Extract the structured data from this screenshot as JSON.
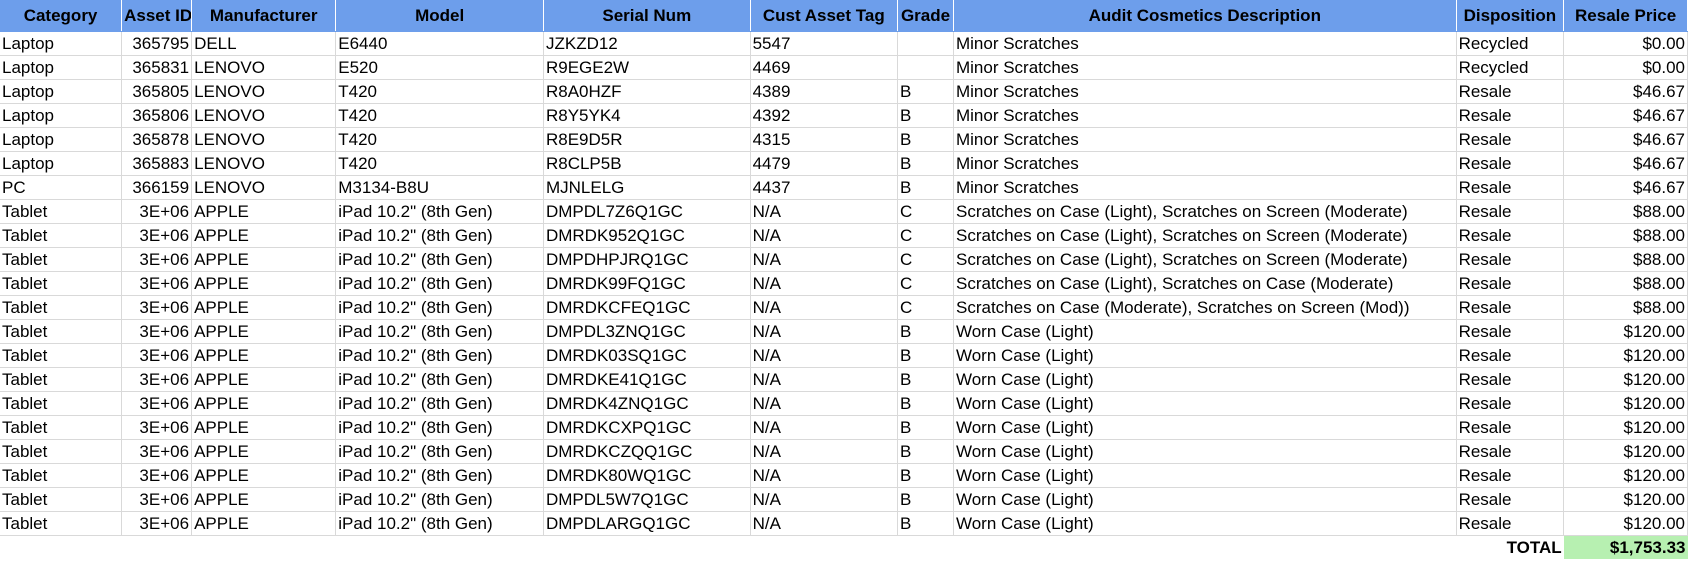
{
  "sheet": {
    "columns": [
      "Category",
      "Asset ID",
      "Manufacturer",
      "Model",
      "Serial Num",
      "Cust Asset Tag",
      "Grade",
      "Audit Cosmetics Description",
      "Disposition",
      "Resale Price"
    ],
    "rows": [
      [
        "Laptop",
        "365795",
        "DELL",
        "E6440",
        "JZKZD12",
        "5547",
        "",
        "Minor Scratches",
        "Recycled",
        "$0.00"
      ],
      [
        "Laptop",
        "365831",
        "LENOVO",
        "E520",
        "R9EGE2W",
        "4469",
        "",
        "Minor Scratches",
        "Recycled",
        "$0.00"
      ],
      [
        "Laptop",
        "365805",
        "LENOVO",
        "T420",
        "R8A0HZF",
        "4389",
        "B",
        "Minor Scratches",
        "Resale",
        "$46.67"
      ],
      [
        "Laptop",
        "365806",
        "LENOVO",
        "T420",
        "R8Y5YK4",
        "4392",
        "B",
        "Minor Scratches",
        "Resale",
        "$46.67"
      ],
      [
        "Laptop",
        "365878",
        "LENOVO",
        "T420",
        "R8E9D5R",
        "4315",
        "B",
        "Minor Scratches",
        "Resale",
        "$46.67"
      ],
      [
        "Laptop",
        "365883",
        "LENOVO",
        "T420",
        "R8CLP5B",
        "4479",
        "B",
        "Minor Scratches",
        "Resale",
        "$46.67"
      ],
      [
        "PC",
        "366159",
        "LENOVO",
        "M3134-B8U",
        "MJNLELG",
        "4437",
        "B",
        "Minor Scratches",
        "Resale",
        "$46.67"
      ],
      [
        "Tablet",
        "3E+06",
        "APPLE",
        "iPad 10.2\" (8th Gen)",
        "DMPDL7Z6Q1GC",
        "N/A",
        "C",
        "Scratches on Case (Light), Scratches on Screen (Moderate)",
        "Resale",
        "$88.00"
      ],
      [
        "Tablet",
        "3E+06",
        "APPLE",
        "iPad 10.2\" (8th Gen)",
        "DMRDK952Q1GC",
        "N/A",
        "C",
        "Scratches on Case (Light), Scratches on Screen (Moderate)",
        "Resale",
        "$88.00"
      ],
      [
        "Tablet",
        "3E+06",
        "APPLE",
        "iPad 10.2\" (8th Gen)",
        "DMPDHPJRQ1GC",
        "N/A",
        "C",
        "Scratches on Case (Light), Scratches on Screen (Moderate)",
        "Resale",
        "$88.00"
      ],
      [
        "Tablet",
        "3E+06",
        "APPLE",
        "iPad 10.2\" (8th Gen)",
        "DMRDK99FQ1GC",
        "N/A",
        "C",
        "Scratches on Case (Light), Scratches on Case (Moderate)",
        "Resale",
        "$88.00"
      ],
      [
        "Tablet",
        "3E+06",
        "APPLE",
        "iPad 10.2\" (8th Gen)",
        "DMRDKCFEQ1GC",
        "N/A",
        "C",
        "Scratches on Case (Moderate), Scratches on Screen (Mod))",
        "Resale",
        "$88.00"
      ],
      [
        "Tablet",
        "3E+06",
        "APPLE",
        "iPad 10.2\" (8th Gen)",
        "DMPDL3ZNQ1GC",
        "N/A",
        "B",
        "Worn Case (Light)",
        "Resale",
        "$120.00"
      ],
      [
        "Tablet",
        "3E+06",
        "APPLE",
        "iPad 10.2\" (8th Gen)",
        "DMRDK03SQ1GC",
        "N/A",
        "B",
        "Worn Case (Light)",
        "Resale",
        "$120.00"
      ],
      [
        "Tablet",
        "3E+06",
        "APPLE",
        "iPad 10.2\" (8th Gen)",
        "DMRDKE41Q1GC",
        "N/A",
        "B",
        "Worn Case (Light)",
        "Resale",
        "$120.00"
      ],
      [
        "Tablet",
        "3E+06",
        "APPLE",
        "iPad 10.2\" (8th Gen)",
        "DMRDK4ZNQ1GC",
        "N/A",
        "B",
        "Worn Case (Light)",
        "Resale",
        "$120.00"
      ],
      [
        "Tablet",
        "3E+06",
        "APPLE",
        "iPad 10.2\" (8th Gen)",
        "DMRDKCXPQ1GC",
        "N/A",
        "B",
        "Worn Case (Light)",
        "Resale",
        "$120.00"
      ],
      [
        "Tablet",
        "3E+06",
        "APPLE",
        "iPad 10.2\" (8th Gen)",
        "DMRDKCZQQ1GC",
        "N/A",
        "B",
        "Worn Case (Light)",
        "Resale",
        "$120.00"
      ],
      [
        "Tablet",
        "3E+06",
        "APPLE",
        "iPad 10.2\" (8th Gen)",
        "DMRDK80WQ1GC",
        "N/A",
        "B",
        "Worn Case (Light)",
        "Resale",
        "$120.00"
      ],
      [
        "Tablet",
        "3E+06",
        "APPLE",
        "iPad 10.2\" (8th Gen)",
        "DMPDL5W7Q1GC",
        "N/A",
        "B",
        "Worn Case (Light)",
        "Resale",
        "$120.00"
      ],
      [
        "Tablet",
        "3E+06",
        "APPLE",
        "iPad 10.2\" (8th Gen)",
        "DMPDLARGQ1GC",
        "N/A",
        "B",
        "Worn Case (Light)",
        "Resale",
        "$120.00"
      ]
    ],
    "total_label": "TOTAL",
    "total_value": "$1,753.33",
    "colors": {
      "header_bg": "#6d9eeb",
      "total_bg": "#b7f0b1",
      "gridline": "#d9d9d9"
    }
  }
}
